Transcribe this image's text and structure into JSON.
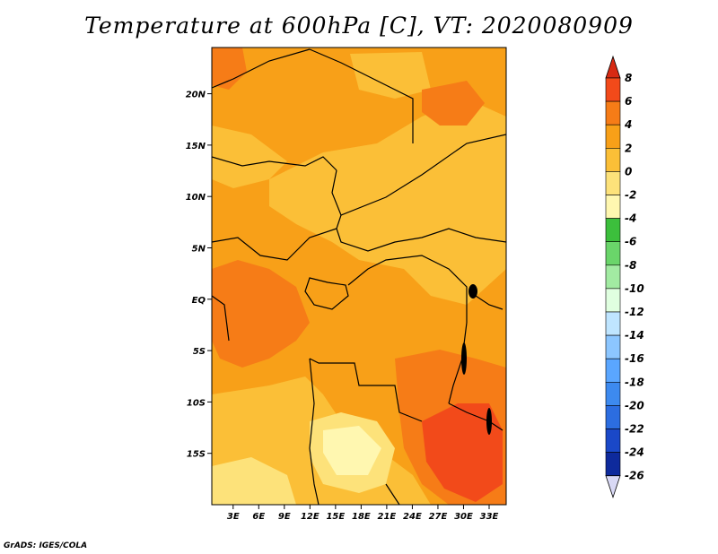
{
  "title": "Temperature at 600hPa [C], VT: 2020080909",
  "credit": "GrADS: IGES/COLA",
  "map": {
    "lat_labels": [
      {
        "label": "20N",
        "lat": 20
      },
      {
        "label": "15N",
        "lat": 15
      },
      {
        "label": "10N",
        "lat": 10
      },
      {
        "label": "5N",
        "lat": 5
      },
      {
        "label": "EQ",
        "lat": 0
      },
      {
        "label": "5S",
        "lat": -5
      },
      {
        "label": "10S",
        "lat": -10
      },
      {
        "label": "15S",
        "lat": -15
      }
    ],
    "lon_labels": [
      {
        "label": "3E",
        "lon": 3
      },
      {
        "label": "6E",
        "lon": 6
      },
      {
        "label": "9E",
        "lon": 9
      },
      {
        "label": "12E",
        "lon": 12
      },
      {
        "label": "15E",
        "lon": 15
      },
      {
        "label": "18E",
        "lon": 18
      },
      {
        "label": "21E",
        "lon": 21
      },
      {
        "label": "24E",
        "lon": 24
      },
      {
        "label": "27E",
        "lon": 27
      },
      {
        "label": "30E",
        "lon": 30
      },
      {
        "label": "33E",
        "lon": 33
      }
    ],
    "lon_range": [
      0.5,
      35
    ],
    "lat_range": [
      -20,
      24.5
    ]
  },
  "colorbar": {
    "labels": [
      "8",
      "6",
      "4",
      "2",
      "0",
      "-2",
      "-4",
      "-6",
      "-8",
      "-10",
      "-12",
      "-14",
      "-16",
      "-18",
      "-20",
      "-22",
      "-24",
      "-26"
    ],
    "top_color": "#d72a13",
    "colors": [
      "#f24a1a",
      "#f67c17",
      "#f8a018",
      "#fbbf37",
      "#fde27a",
      "#fff7b0",
      "#3cbf3c",
      "#6ad56a",
      "#a2eba2",
      "#e0ffe0",
      "#bfe5ff",
      "#8cc6ff",
      "#5aa6ff",
      "#3d8aef",
      "#2c6de0",
      "#1a48c8",
      "#0e2a9c"
    ],
    "bottom_color": "#d9d9f5"
  }
}
